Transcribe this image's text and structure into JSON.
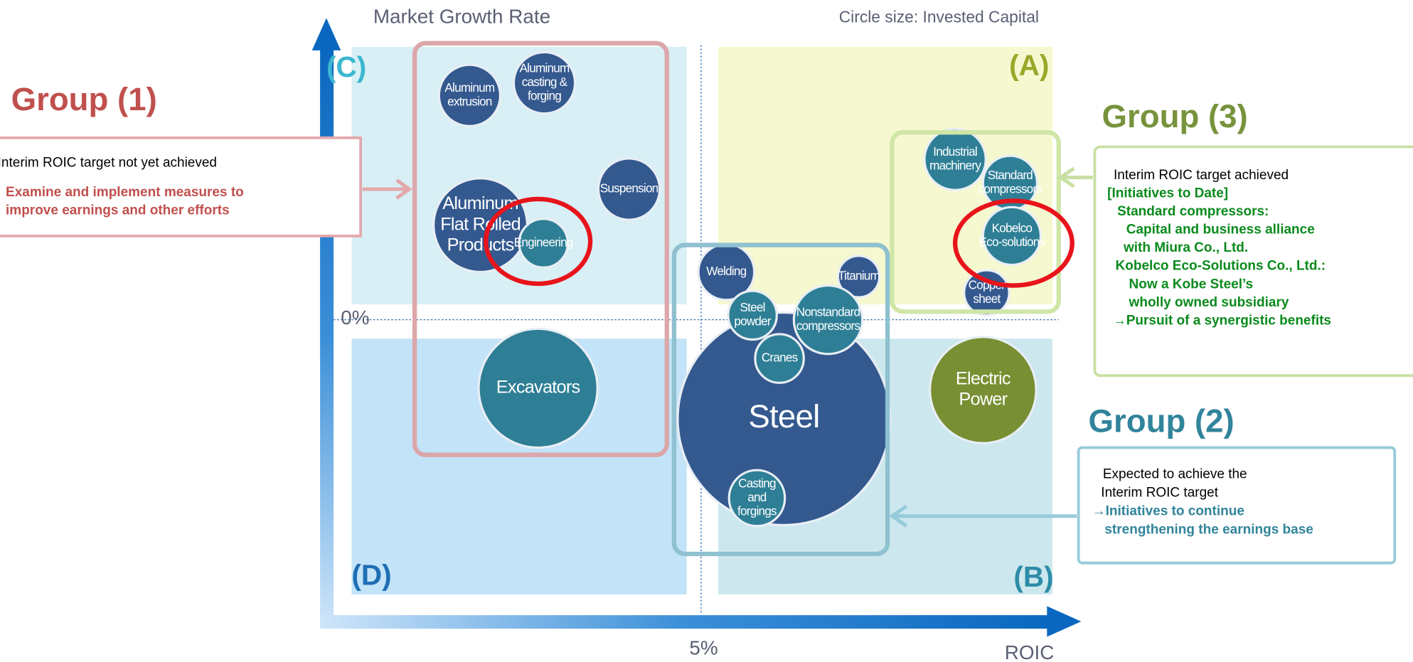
{
  "axes": {
    "y_label": "Market Growth Rate",
    "x_label": "ROIC",
    "size_note": "Circle size: Invested Capital",
    "y_mark": "0%",
    "x_mark": "5%"
  },
  "quadrants": [
    "(C)",
    "(A)",
    "(D)",
    "(B)"
  ],
  "nodes": [
    {
      "label": [
        "Aluminum",
        "extrusion"
      ],
      "color": "#34598f"
    },
    {
      "label": [
        "Aluminum",
        "casting &",
        "forging"
      ],
      "color": "#34598f"
    },
    {
      "label": [
        "Aluminum",
        "Flat Rolled",
        "Products"
      ],
      "color": "#34598f"
    },
    {
      "label": [
        "Engineering"
      ],
      "color": "#2e7f96"
    },
    {
      "label": [
        "Suspension"
      ],
      "color": "#34598f"
    },
    {
      "label": [
        "Excavators"
      ],
      "color": "#2e7f96"
    },
    {
      "label": [
        "Welding"
      ],
      "color": "#34598f"
    },
    {
      "label": [
        "Titanium"
      ],
      "color": "#34598f"
    },
    {
      "label": [
        "Steel"
      ],
      "color": "#34598f"
    },
    {
      "label": [
        "Steel",
        "powder"
      ],
      "color": "#2e7f96"
    },
    {
      "label": [
        "Nonstandard",
        "compressors"
      ],
      "color": "#2e7f96"
    },
    {
      "label": [
        "Cranes"
      ],
      "color": "#2e7f96"
    },
    {
      "label": [
        "Casting",
        "and",
        "forgings"
      ],
      "color": "#2e7f96"
    },
    {
      "label": [
        "Industrial",
        "machinery"
      ],
      "color": "#2e7f96"
    },
    {
      "label": [
        "Standard",
        "compressors"
      ],
      "color": "#2e7f96"
    },
    {
      "label": [
        "Kobelco",
        "Eco-solutions"
      ],
      "color": "#2e7f96"
    },
    {
      "label": [
        "Copper",
        "sheet"
      ],
      "color": "#34598f"
    },
    {
      "label": [
        "Electric",
        "Power"
      ],
      "color": "#788f33"
    }
  ],
  "groups": [
    {
      "title": "Group (1)",
      "status": [
        "Interim ROIC target not yet achieved"
      ],
      "actions": [
        "Examine and implement measures to",
        "improve earnings and other efforts"
      ]
    },
    {
      "title": "Group (3)",
      "status": [
        "Interim ROIC target achieved"
      ],
      "actions": [
        "[Initiatives to Date]",
        "Standard compressors:",
        "Capital and business alliance",
        "with Miura Co., Ltd.",
        "Kobelco Eco-Solutions Co., Ltd.:",
        "Now a Kobe Steel’s",
        "wholly owned subsidiary",
        "→Pursuit of a synergistic benefits"
      ]
    },
    {
      "title": "Group (2)",
      "status": [
        "Expected to achieve the",
        "Interim ROIC target"
      ],
      "actions": [
        "→Initiatives to continue",
        "strengthening the earnings base"
      ]
    }
  ]
}
